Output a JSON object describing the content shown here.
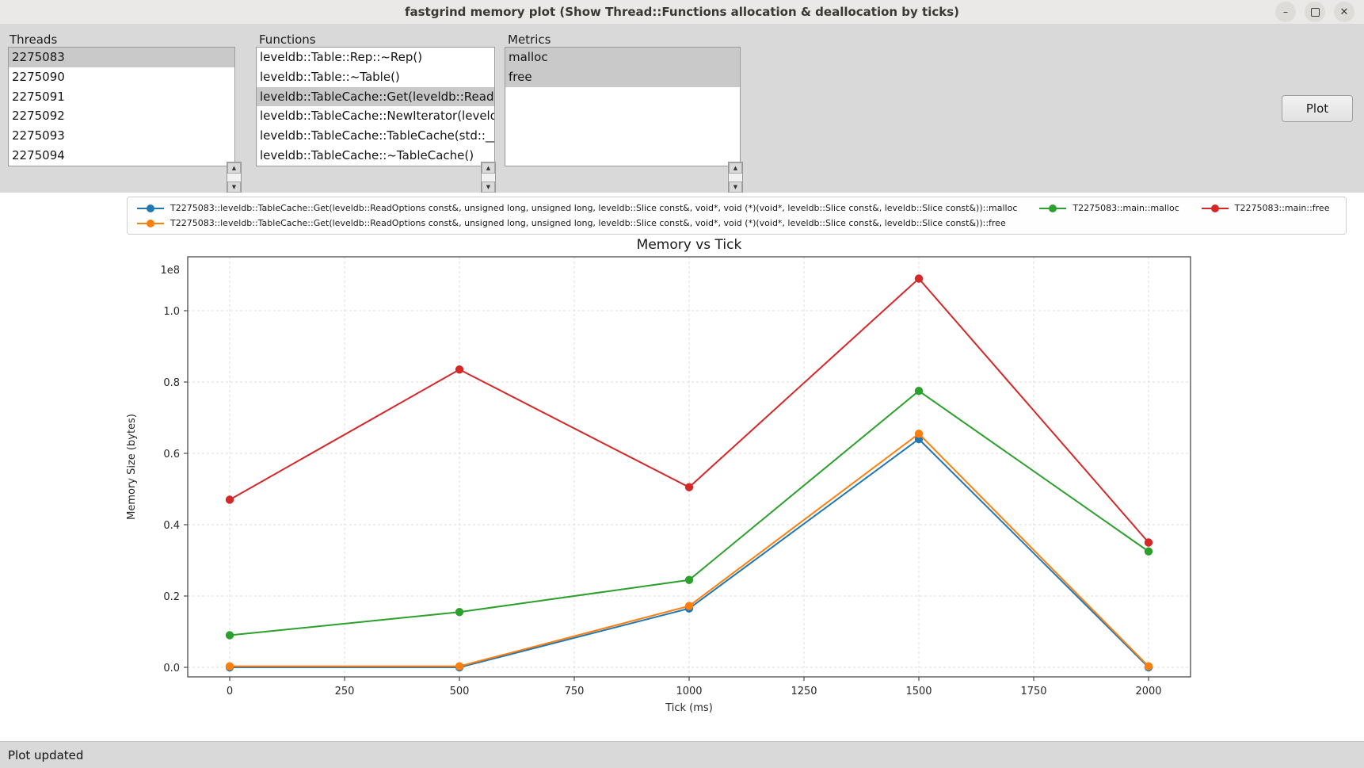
{
  "window": {
    "title": "fastgrind memory plot (Show Thread::Functions allocation & deallocation by ticks)",
    "controls": {
      "minimize": "–",
      "close": "✕"
    }
  },
  "panel": {
    "threads": {
      "label": "Threads",
      "items": [
        "2275083",
        "2275090",
        "2275091",
        "2275092",
        "2275093",
        "2275094"
      ],
      "selected_indices": [
        0
      ]
    },
    "functions": {
      "label": "Functions",
      "items": [
        "leveldb::Table::Rep::~Rep()",
        "leveldb::Table::~Table()",
        "leveldb::TableCache::Get(leveldb::ReadO",
        "leveldb::TableCache::NewIterator(leveldb",
        "leveldb::TableCache::TableCache(std::__",
        "leveldb::TableCache::~TableCache()"
      ],
      "selected_indices": [
        2
      ]
    },
    "metrics": {
      "label": "Metrics",
      "items": [
        "malloc",
        "free"
      ],
      "selected_indices": [
        0,
        1
      ]
    },
    "plot_button_label": "Plot"
  },
  "chart_data": {
    "type": "line",
    "title": "Memory vs Tick",
    "xlabel": "Tick (ms)",
    "ylabel": "Memory Size (bytes)",
    "y_offset_label": "1e8",
    "x": [
      0,
      500,
      1000,
      1500,
      2000
    ],
    "xticks": [
      0,
      250,
      500,
      750,
      1000,
      1250,
      1500,
      1750,
      2000
    ],
    "yticks": [
      0.0,
      0.2,
      0.4,
      0.6,
      0.8,
      1.0
    ],
    "ylim": [
      0,
      115000000
    ],
    "grid": true,
    "legend_position": "top",
    "series": [
      {
        "name": "T2275083::leveldb::TableCache::Get(leveldb::ReadOptions const&, unsigned long, unsigned long, leveldb::Slice const&, void*, void (*)(void*, leveldb::Slice const&, leveldb::Slice const&))::malloc",
        "color": "#1f77b4",
        "values": [
          0,
          0,
          16500000,
          64000000,
          0
        ]
      },
      {
        "name": "T2275083::leveldb::TableCache::Get(leveldb::ReadOptions const&, unsigned long, unsigned long, leveldb::Slice const&, void*, void (*)(void*, leveldb::Slice const&, leveldb::Slice const&))::free",
        "color": "#ff7f0e",
        "values": [
          300000,
          300000,
          17200000,
          65500000,
          300000
        ]
      },
      {
        "name": "T2275083::main::malloc",
        "color": "#2ca02c",
        "values": [
          9000000,
          15500000,
          24500000,
          77500000,
          32500000
        ]
      },
      {
        "name": "T2275083::main::free",
        "color": "#d62728",
        "values": [
          47000000,
          83500000,
          50500000,
          109000000,
          35000000
        ]
      }
    ],
    "legend_rows": [
      [
        0,
        2,
        3
      ],
      [
        1
      ]
    ]
  },
  "status_bar": {
    "text": "Plot updated"
  },
  "colors": {
    "selection_background": "#c9c9c9",
    "titlebar_background": "#ebe9e7",
    "panel_background": "#d9d9d9",
    "figure_background": "#ffffff"
  }
}
